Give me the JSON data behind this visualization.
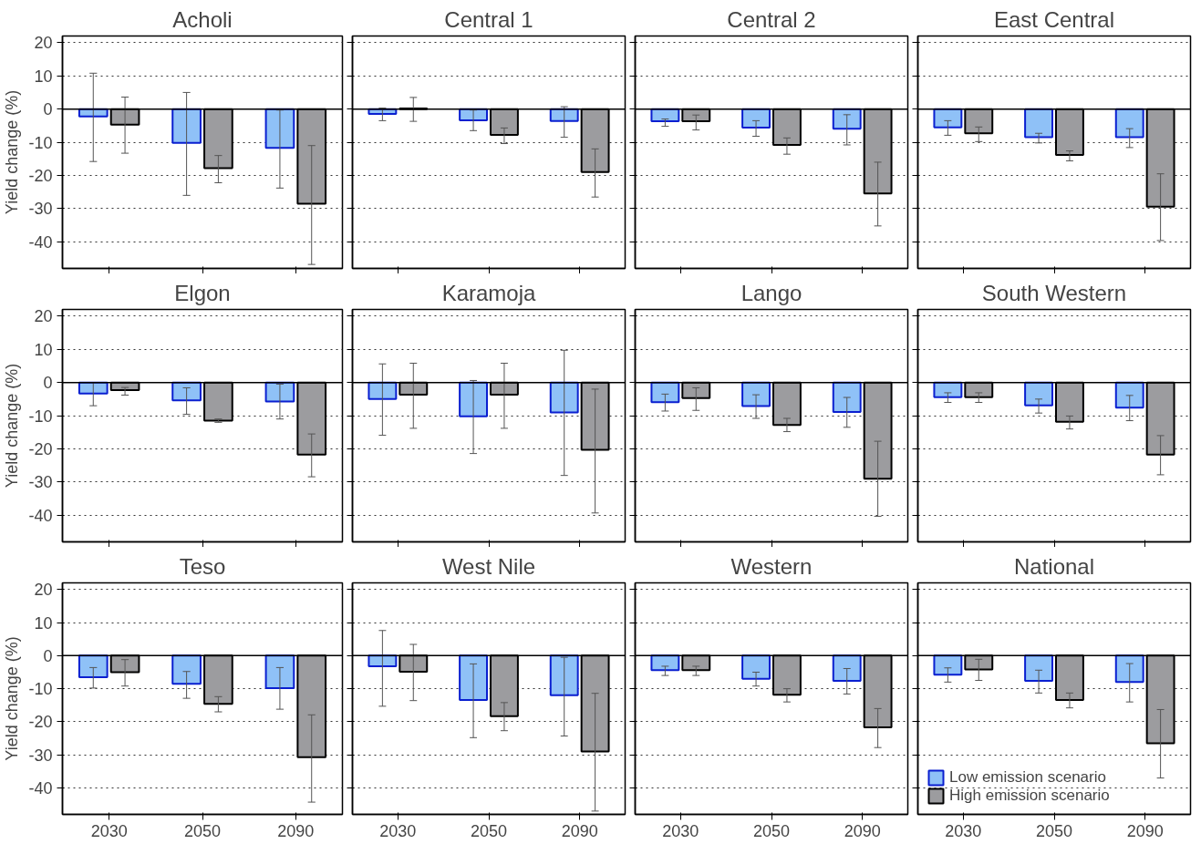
{
  "chart_data": [
    {
      "type": "bar",
      "title": "Acholi",
      "ylabel": "Yield change (%)",
      "categories": [
        "2030",
        "2050",
        "2090"
      ],
      "ylim": [
        -48,
        22
      ],
      "yticks": [
        -40,
        -30,
        -20,
        -10,
        0,
        10,
        20
      ],
      "grid": "y",
      "tick_labels": "y",
      "ref_lines": [
        {
          "axis": "y",
          "value": 0
        }
      ],
      "series": [
        {
          "color": "#8fc1f7",
          "values": [
            -2.2,
            -10.2,
            -11.7
          ],
          "errors": [
            [
              -15.8,
              10.8
            ],
            [
              -26,
              5
            ],
            [
              -23.8,
              -0.3
            ]
          ]
        },
        {
          "color": "#9c9c9f",
          "values": [
            -4.7,
            -17.8,
            -28.5
          ],
          "errors": [
            [
              -13.3,
              3.6
            ],
            [
              -22.2,
              -14
            ],
            [
              -46.8,
              -11
            ]
          ]
        }
      ]
    },
    {
      "type": "bar",
      "title": "Central 1",
      "categories": [
        "2030",
        "2050",
        "2090"
      ],
      "ylim": [
        -48,
        22
      ],
      "yticks": [
        -40,
        -30,
        -20,
        -10,
        0,
        10,
        20
      ],
      "grid": "y",
      "tick_labels": false,
      "ref_lines": [
        {
          "axis": "y",
          "value": 0
        }
      ],
      "series": [
        {
          "color": "#8fc1f7",
          "values": [
            -1.5,
            -3.4,
            -3.6
          ],
          "errors": [
            [
              -3.5,
              0.3
            ],
            [
              -6.5,
              -0.3
            ],
            [
              -8.5,
              0.7
            ]
          ]
        },
        {
          "color": "#9c9c9f",
          "values": [
            0.2,
            -7.8,
            -19
          ],
          "errors": [
            [
              -3.7,
              3.5
            ],
            [
              -10.4,
              -5.7
            ],
            [
              -26.5,
              -12
            ]
          ]
        }
      ]
    },
    {
      "type": "bar",
      "title": "Central 2",
      "categories": [
        "2030",
        "2050",
        "2090"
      ],
      "ylim": [
        -48,
        22
      ],
      "yticks": [
        -40,
        -30,
        -20,
        -10,
        0,
        10,
        20
      ],
      "grid": "y",
      "tick_labels": false,
      "ref_lines": [
        {
          "axis": "y",
          "value": 0
        }
      ],
      "series": [
        {
          "color": "#8fc1f7",
          "values": [
            -3.7,
            -5.6,
            -5.9
          ],
          "errors": [
            [
              -5.2,
              -3
            ],
            [
              -8.2,
              -3.5
            ],
            [
              -10.8,
              -1.7
            ]
          ]
        },
        {
          "color": "#9c9c9f",
          "values": [
            -3.7,
            -10.8,
            -25.4
          ],
          "errors": [
            [
              -6.3,
              -1.8
            ],
            [
              -13.6,
              -8.7
            ],
            [
              -35.2,
              -16
            ]
          ]
        }
      ]
    },
    {
      "type": "bar",
      "title": "East Central",
      "categories": [
        "2030",
        "2050",
        "2090"
      ],
      "ylim": [
        -48,
        22
      ],
      "yticks": [
        -40,
        -30,
        -20,
        -10,
        0,
        10,
        20
      ],
      "grid": "y",
      "tick_labels": false,
      "ref_lines": [
        {
          "axis": "y",
          "value": 0
        }
      ],
      "series": [
        {
          "color": "#8fc1f7",
          "values": [
            -5.5,
            -8.5,
            -8.5
          ],
          "errors": [
            [
              -7.9,
              -3.5
            ],
            [
              -10.2,
              -7.3
            ],
            [
              -11.6,
              -5.9
            ]
          ]
        },
        {
          "color": "#9c9c9f",
          "values": [
            -7.3,
            -13.8,
            -29.4
          ],
          "errors": [
            [
              -9.8,
              -5.4
            ],
            [
              -15.6,
              -12.6
            ],
            [
              -39.6,
              -19.5
            ]
          ]
        }
      ]
    },
    {
      "type": "bar",
      "title": "Elgon",
      "ylabel": "Yield change (%)",
      "categories": [
        "2030",
        "2050",
        "2090"
      ],
      "ylim": [
        -48,
        22
      ],
      "yticks": [
        -40,
        -30,
        -20,
        -10,
        0,
        10,
        20
      ],
      "grid": "y",
      "tick_labels": "y",
      "ref_lines": [
        {
          "axis": "y",
          "value": 0
        }
      ],
      "series": [
        {
          "color": "#8fc1f7",
          "values": [
            -3.3,
            -5.4,
            -5.7
          ],
          "errors": [
            [
              -7,
              0
            ],
            [
              -9.6,
              -1.6
            ],
            [
              -11,
              -0.5
            ]
          ]
        },
        {
          "color": "#9c9c9f",
          "values": [
            -2.3,
            -11.5,
            -21.7
          ],
          "errors": [
            [
              -3.8,
              -1.5
            ],
            [
              -12,
              -11
            ],
            [
              -28.4,
              -15.5
            ]
          ]
        }
      ]
    },
    {
      "type": "bar",
      "title": "Karamoja",
      "categories": [
        "2030",
        "2050",
        "2090"
      ],
      "ylim": [
        -48,
        22
      ],
      "yticks": [
        -40,
        -30,
        -20,
        -10,
        0,
        10,
        20
      ],
      "grid": "y",
      "tick_labels": false,
      "ref_lines": [
        {
          "axis": "y",
          "value": 0
        }
      ],
      "series": [
        {
          "color": "#8fc1f7",
          "values": [
            -5,
            -10.2,
            -9
          ],
          "errors": [
            [
              -15.9,
              5.6
            ],
            [
              -21.4,
              0.6
            ],
            [
              -28,
              9.7
            ]
          ]
        },
        {
          "color": "#9c9c9f",
          "values": [
            -3.7,
            -3.7,
            -20.3
          ],
          "errors": [
            [
              -13.8,
              5.8
            ],
            [
              -13.8,
              5.8
            ],
            [
              -39.3,
              -2
            ]
          ]
        }
      ]
    },
    {
      "type": "bar",
      "title": "Lango",
      "categories": [
        "2030",
        "2050",
        "2090"
      ],
      "ylim": [
        -48,
        22
      ],
      "yticks": [
        -40,
        -30,
        -20,
        -10,
        0,
        10,
        20
      ],
      "grid": "y",
      "tick_labels": false,
      "ref_lines": [
        {
          "axis": "y",
          "value": 0
        }
      ],
      "series": [
        {
          "color": "#8fc1f7",
          "values": [
            -5.9,
            -7.1,
            -8.9
          ],
          "errors": [
            [
              -8.6,
              -3.5
            ],
            [
              -10.8,
              -3.7
            ],
            [
              -13.5,
              -4.5
            ]
          ]
        },
        {
          "color": "#9c9c9f",
          "values": [
            -4.7,
            -12.8,
            -29
          ],
          "errors": [
            [
              -8.4,
              -1.6
            ],
            [
              -14.8,
              -10.8
            ],
            [
              -40.3,
              -17.7
            ]
          ]
        }
      ]
    },
    {
      "type": "bar",
      "title": "South Western",
      "categories": [
        "2030",
        "2050",
        "2090"
      ],
      "ylim": [
        -48,
        22
      ],
      "yticks": [
        -40,
        -30,
        -20,
        -10,
        0,
        10,
        20
      ],
      "grid": "y",
      "tick_labels": false,
      "ref_lines": [
        {
          "axis": "y",
          "value": 0
        }
      ],
      "series": [
        {
          "color": "#8fc1f7",
          "values": [
            -4.4,
            -6.9,
            -7.6
          ],
          "errors": [
            [
              -6,
              -3.1
            ],
            [
              -9.2,
              -5
            ],
            [
              -11.5,
              -3.9
            ]
          ]
        },
        {
          "color": "#9c9c9f",
          "values": [
            -4.4,
            -11.8,
            -21.7
          ],
          "errors": [
            [
              -6,
              -3.1
            ],
            [
              -14,
              -10.1
            ],
            [
              -27.8,
              -16
            ]
          ]
        }
      ]
    },
    {
      "type": "bar",
      "title": "Teso",
      "ylabel": "Yield change (%)",
      "categories": [
        "2030",
        "2050",
        "2090"
      ],
      "ylim": [
        -48,
        22
      ],
      "yticks": [
        -40,
        -30,
        -20,
        -10,
        0,
        10,
        20
      ],
      "grid": "y",
      "ref_lines": [
        {
          "axis": "y",
          "value": 0
        }
      ],
      "series": [
        {
          "color": "#8fc1f7",
          "values": [
            -6.5,
            -8.5,
            -9.8
          ],
          "errors": [
            [
              -9.8,
              -3.6
            ],
            [
              -12.9,
              -4.8
            ],
            [
              -16.2,
              -3.6
            ]
          ]
        },
        {
          "color": "#9c9c9f",
          "values": [
            -5,
            -14.6,
            -30.7
          ],
          "errors": [
            [
              -9.2,
              -1.2
            ],
            [
              -17,
              -12.4
            ],
            [
              -44.3,
              -17.9
            ]
          ]
        }
      ]
    },
    {
      "type": "bar",
      "title": "West Nile",
      "categories": [
        "2030",
        "2050",
        "2090"
      ],
      "ylim": [
        -48,
        22
      ],
      "yticks": [
        -40,
        -30,
        -20,
        -10,
        0,
        10,
        20
      ],
      "grid": "y",
      "tick_labels": "x",
      "ref_lines": [
        {
          "axis": "y",
          "value": 0
        }
      ],
      "series": [
        {
          "color": "#8fc1f7",
          "values": [
            -3.2,
            -13.4,
            -12
          ],
          "errors": [
            [
              -15.3,
              7.6
            ],
            [
              -24.8,
              -2.5
            ],
            [
              -24.3,
              -0.5
            ]
          ]
        },
        {
          "color": "#9c9c9f",
          "values": [
            -4.9,
            -18.3,
            -29
          ],
          "errors": [
            [
              -13.6,
              3.4
            ],
            [
              -22.7,
              -14.2
            ],
            [
              -47,
              -11.4
            ]
          ]
        }
      ]
    },
    {
      "type": "bar",
      "title": "Western",
      "categories": [
        "2030",
        "2050",
        "2090"
      ],
      "ylim": [
        -48,
        22
      ],
      "yticks": [
        -40,
        -30,
        -20,
        -10,
        0,
        10,
        20
      ],
      "grid": "y",
      "tick_labels": "x",
      "ref_lines": [
        {
          "axis": "y",
          "value": 0
        }
      ],
      "series": [
        {
          "color": "#8fc1f7",
          "values": [
            -4.4,
            -7,
            -7.6
          ],
          "errors": [
            [
              -6,
              -3.2
            ],
            [
              -9.2,
              -5
            ],
            [
              -11.6,
              -3.9
            ]
          ]
        },
        {
          "color": "#9c9c9f",
          "values": [
            -4.4,
            -11.8,
            -21.7
          ],
          "errors": [
            [
              -6,
              -3.2
            ],
            [
              -14,
              -10
            ],
            [
              -27.8,
              -16
            ]
          ]
        }
      ]
    },
    {
      "type": "bar",
      "title": "National",
      "categories": [
        "2030",
        "2050",
        "2090"
      ],
      "ylim": [
        -48,
        22
      ],
      "yticks": [
        -40,
        -30,
        -20,
        -10,
        0,
        10,
        20
      ],
      "grid": "y",
      "tick_labels": "x",
      "legend": "bottom left",
      "ref_lines": [
        {
          "axis": "y",
          "value": 0
        }
      ],
      "series": [
        {
          "name": "Low emission scenario",
          "color": "#8fc1f7",
          "values": [
            -5.8,
            -7.6,
            -8
          ],
          "errors": [
            [
              -8,
              -3.7
            ],
            [
              -11.3,
              -4.4
            ],
            [
              -14,
              -2.4
            ]
          ]
        },
        {
          "name": "High emission scenario",
          "color": "#9c9c9f",
          "values": [
            -4.2,
            -13.4,
            -26.5
          ],
          "errors": [
            [
              -7.5,
              -1.1
            ],
            [
              -15.8,
              -11.3
            ],
            [
              -37,
              -16.3
            ]
          ]
        }
      ]
    }
  ]
}
